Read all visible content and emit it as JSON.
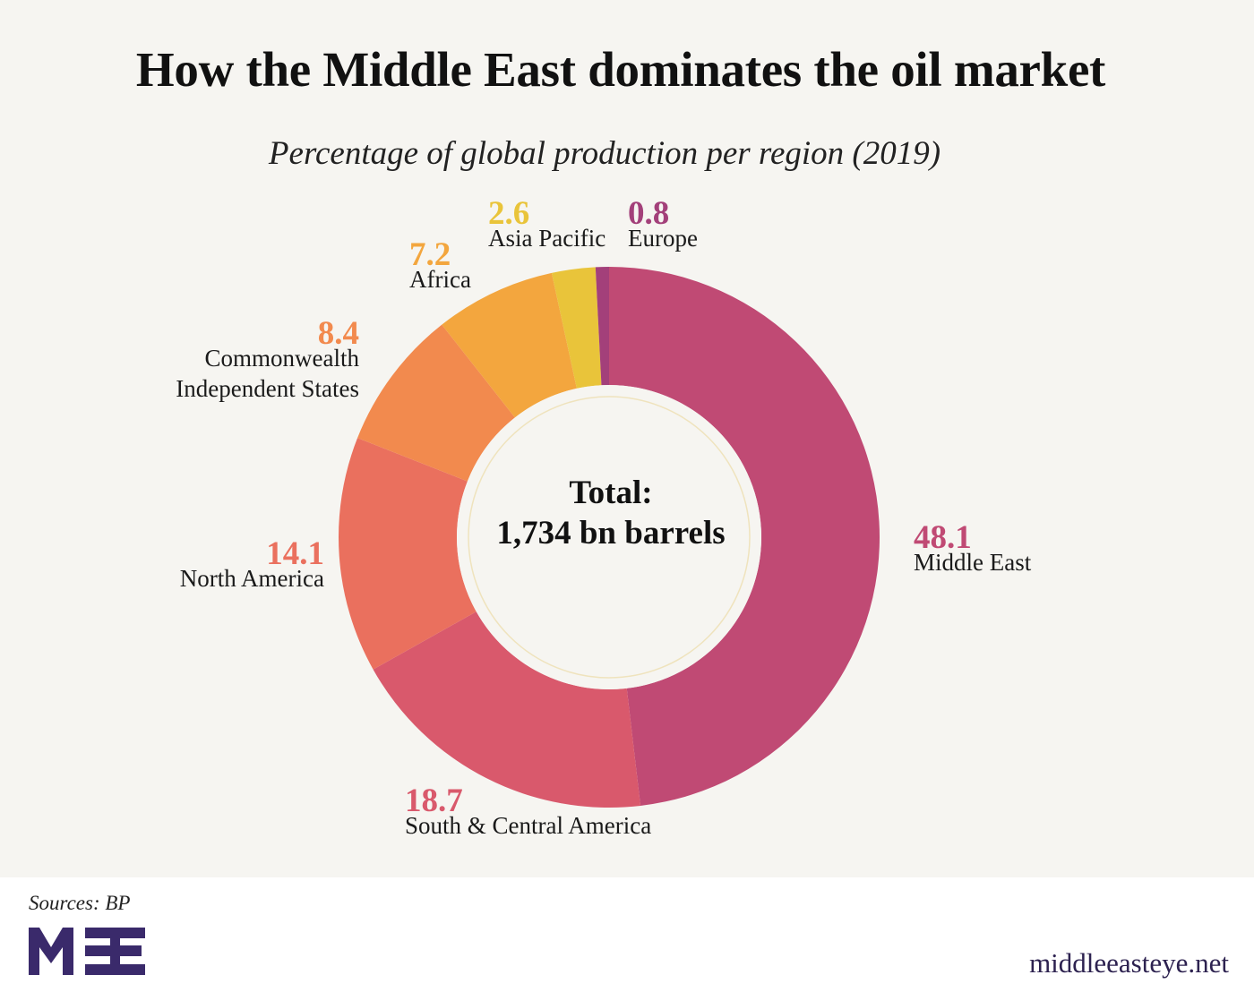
{
  "header": {
    "title": "How the Middle East dominates the oil market",
    "subtitle": "Percentage of global production per region (2019)"
  },
  "center": {
    "line1": "Total:",
    "line2": "1,734 bn barrels"
  },
  "labels": {
    "middle_east": {
      "value": "48.1",
      "name": "Middle East"
    },
    "south_central_america": {
      "value": "18.7",
      "name": "South & Central America"
    },
    "north_america": {
      "value": "14.1",
      "name": "North America"
    },
    "cis": {
      "value": "8.4",
      "name1": "Commonwealth",
      "name2": "Independent States"
    },
    "africa": {
      "value": "7.2",
      "name": "Africa"
    },
    "asia_pacific": {
      "value": "2.6",
      "name": "Asia Pacific"
    },
    "europe": {
      "value": "0.8",
      "name": "Europe"
    }
  },
  "footer": {
    "sources": "Sources: BP",
    "logo_text": "MEE",
    "site": "middleeasteye.net"
  },
  "colors": {
    "middle_east": "#c04a74",
    "south_central_america": "#d9596c",
    "north_america": "#ea705e",
    "cis": "#f28a4e",
    "africa": "#f3a63e",
    "asia_pacific": "#e9c43a",
    "europe": "#a3407a",
    "background": "#f6f5f1",
    "brand": "#2d2250"
  },
  "chart_data": {
    "type": "pie",
    "title": "How the Middle East dominates the oil market",
    "subtitle": "Percentage of global production per region (2019)",
    "donut": true,
    "center_label": "Total: 1,734 bn barrels",
    "categories": [
      "Middle East",
      "South & Central America",
      "North America",
      "Commonwealth Independent States",
      "Africa",
      "Asia Pacific",
      "Europe"
    ],
    "values": [
      48.1,
      18.7,
      14.1,
      8.4,
      7.2,
      2.6,
      0.8
    ],
    "colors": [
      "#c04a74",
      "#d9596c",
      "#ea705e",
      "#f28a4e",
      "#f3a63e",
      "#e9c43a",
      "#a3407a"
    ],
    "unit": "%",
    "start_angle": "12 o'clock, clockwise",
    "source": "BP"
  }
}
